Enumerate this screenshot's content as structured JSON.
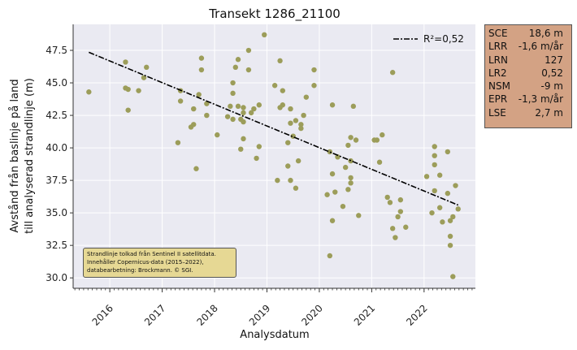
{
  "chart_data": {
    "type": "scatter",
    "title": "Transekt 1286_21100",
    "xlabel": "Analysdatum",
    "ylabel_line1": "Avstånd från baslinje på land",
    "ylabel_line2": "till analyserad strandlinje (m)",
    "xlim": [
      2015.3,
      2022.98
    ],
    "ylim": [
      29.2,
      49.5
    ],
    "x_ticks": [
      2016,
      2017,
      2018,
      2019,
      2020,
      2021,
      2022
    ],
    "x_tick_labels": [
      "2016",
      "2017",
      "2018",
      "2019",
      "2020",
      "2021",
      "2022"
    ],
    "y_ticks": [
      30.0,
      32.5,
      35.0,
      37.5,
      40.0,
      42.5,
      45.0,
      47.5
    ],
    "y_tick_labels": [
      "30.0",
      "32.5",
      "35.0",
      "37.5",
      "40.0",
      "42.5",
      "45.0",
      "47.5"
    ],
    "grid": true,
    "legend_position": "top-right",
    "legend": [
      "R²=0,52"
    ],
    "colors": {
      "points": "#9c9d5a",
      "trend": "#000000",
      "background": "#eaeaf2"
    },
    "trend": {
      "x": [
        2015.6,
        2022.65
      ],
      "y": [
        47.35,
        35.6
      ]
    },
    "points": [
      [
        2015.6,
        44.3
      ],
      [
        2016.3,
        46.6
      ],
      [
        2016.3,
        44.6
      ],
      [
        2016.35,
        44.5
      ],
      [
        2016.35,
        42.9
      ],
      [
        2016.55,
        44.4
      ],
      [
        2016.65,
        45.4
      ],
      [
        2016.7,
        46.2
      ],
      [
        2017.3,
        40.4
      ],
      [
        2017.35,
        43.6
      ],
      [
        2017.35,
        44.4
      ],
      [
        2017.55,
        41.6
      ],
      [
        2017.6,
        41.8
      ],
      [
        2017.6,
        43.0
      ],
      [
        2017.65,
        38.4
      ],
      [
        2017.7,
        44.1
      ],
      [
        2017.75,
        46.9
      ],
      [
        2017.75,
        46.0
      ],
      [
        2017.85,
        42.5
      ],
      [
        2017.85,
        43.4
      ],
      [
        2018.05,
        41.0
      ],
      [
        2018.25,
        42.4
      ],
      [
        2018.3,
        43.2
      ],
      [
        2018.35,
        45.0
      ],
      [
        2018.35,
        44.2
      ],
      [
        2018.35,
        42.2
      ],
      [
        2018.4,
        46.2
      ],
      [
        2018.45,
        46.8
      ],
      [
        2018.45,
        43.2
      ],
      [
        2018.5,
        42.2
      ],
      [
        2018.5,
        39.9
      ],
      [
        2018.55,
        43.1
      ],
      [
        2018.55,
        42.7
      ],
      [
        2018.55,
        42.0
      ],
      [
        2018.55,
        40.7
      ],
      [
        2018.65,
        47.5
      ],
      [
        2018.65,
        46.0
      ],
      [
        2018.7,
        42.7
      ],
      [
        2018.75,
        43.0
      ],
      [
        2018.8,
        39.2
      ],
      [
        2018.85,
        43.3
      ],
      [
        2018.85,
        40.1
      ],
      [
        2018.95,
        48.7
      ],
      [
        2019.15,
        44.8
      ],
      [
        2019.2,
        37.5
      ],
      [
        2019.25,
        46.7
      ],
      [
        2019.25,
        43.1
      ],
      [
        2019.3,
        44.4
      ],
      [
        2019.3,
        43.3
      ],
      [
        2019.4,
        40.4
      ],
      [
        2019.4,
        38.6
      ],
      [
        2019.45,
        43.0
      ],
      [
        2019.45,
        41.9
      ],
      [
        2019.45,
        37.5
      ],
      [
        2019.5,
        40.9
      ],
      [
        2019.55,
        42.1
      ],
      [
        2019.55,
        36.9
      ],
      [
        2019.6,
        39.0
      ],
      [
        2019.65,
        41.8
      ],
      [
        2019.65,
        41.5
      ],
      [
        2019.7,
        42.5
      ],
      [
        2019.75,
        43.9
      ],
      [
        2019.9,
        46.0
      ],
      [
        2019.9,
        44.8
      ],
      [
        2020.15,
        36.4
      ],
      [
        2020.2,
        39.7
      ],
      [
        2020.2,
        31.7
      ],
      [
        2020.25,
        43.3
      ],
      [
        2020.25,
        38.0
      ],
      [
        2020.25,
        34.4
      ],
      [
        2020.3,
        36.6
      ],
      [
        2020.35,
        39.3
      ],
      [
        2020.45,
        35.5
      ],
      [
        2020.5,
        38.5
      ],
      [
        2020.55,
        36.8
      ],
      [
        2020.55,
        40.2
      ],
      [
        2020.6,
        37.3
      ],
      [
        2020.6,
        37.7
      ],
      [
        2020.6,
        39.0
      ],
      [
        2020.6,
        40.8
      ],
      [
        2020.65,
        43.2
      ],
      [
        2020.7,
        40.6
      ],
      [
        2020.75,
        34.8
      ],
      [
        2021.05,
        40.6
      ],
      [
        2021.1,
        40.6
      ],
      [
        2021.15,
        38.9
      ],
      [
        2021.2,
        41.0
      ],
      [
        2021.3,
        36.2
      ],
      [
        2021.35,
        35.8
      ],
      [
        2021.4,
        33.8
      ],
      [
        2021.4,
        45.8
      ],
      [
        2021.45,
        33.1
      ],
      [
        2021.5,
        34.7
      ],
      [
        2021.55,
        36.0
      ],
      [
        2021.55,
        35.1
      ],
      [
        2021.65,
        33.9
      ],
      [
        2022.05,
        37.8
      ],
      [
        2022.15,
        35.0
      ],
      [
        2022.2,
        40.1
      ],
      [
        2022.2,
        39.4
      ],
      [
        2022.2,
        38.7
      ],
      [
        2022.2,
        36.7
      ],
      [
        2022.3,
        37.9
      ],
      [
        2022.3,
        35.4
      ],
      [
        2022.35,
        34.3
      ],
      [
        2022.45,
        39.7
      ],
      [
        2022.45,
        36.5
      ],
      [
        2022.5,
        34.4
      ],
      [
        2022.5,
        33.2
      ],
      [
        2022.5,
        32.5
      ],
      [
        2022.55,
        30.1
      ],
      [
        2022.55,
        34.7
      ],
      [
        2022.6,
        37.1
      ],
      [
        2022.65,
        35.3
      ]
    ]
  },
  "stats": [
    {
      "key": "SCE",
      "value": "18,6 m"
    },
    {
      "key": "LRR",
      "value": "-1,6 m/år"
    },
    {
      "key": "LRN",
      "value": "127"
    },
    {
      "key": "LR2",
      "value": "0,52"
    },
    {
      "key": "NSM",
      "value": "-9 m"
    },
    {
      "key": "EPR",
      "value": "-1,3 m/år"
    },
    {
      "key": "LSE",
      "value": "2,7 m"
    }
  ],
  "note": {
    "line1": "Strandlinje tolkad från Sentinel II satellitdata.",
    "line2": "Innehåller Copernicus-data (2015–2022),",
    "line3": "databearbetning: Brockmann. © SGI."
  }
}
